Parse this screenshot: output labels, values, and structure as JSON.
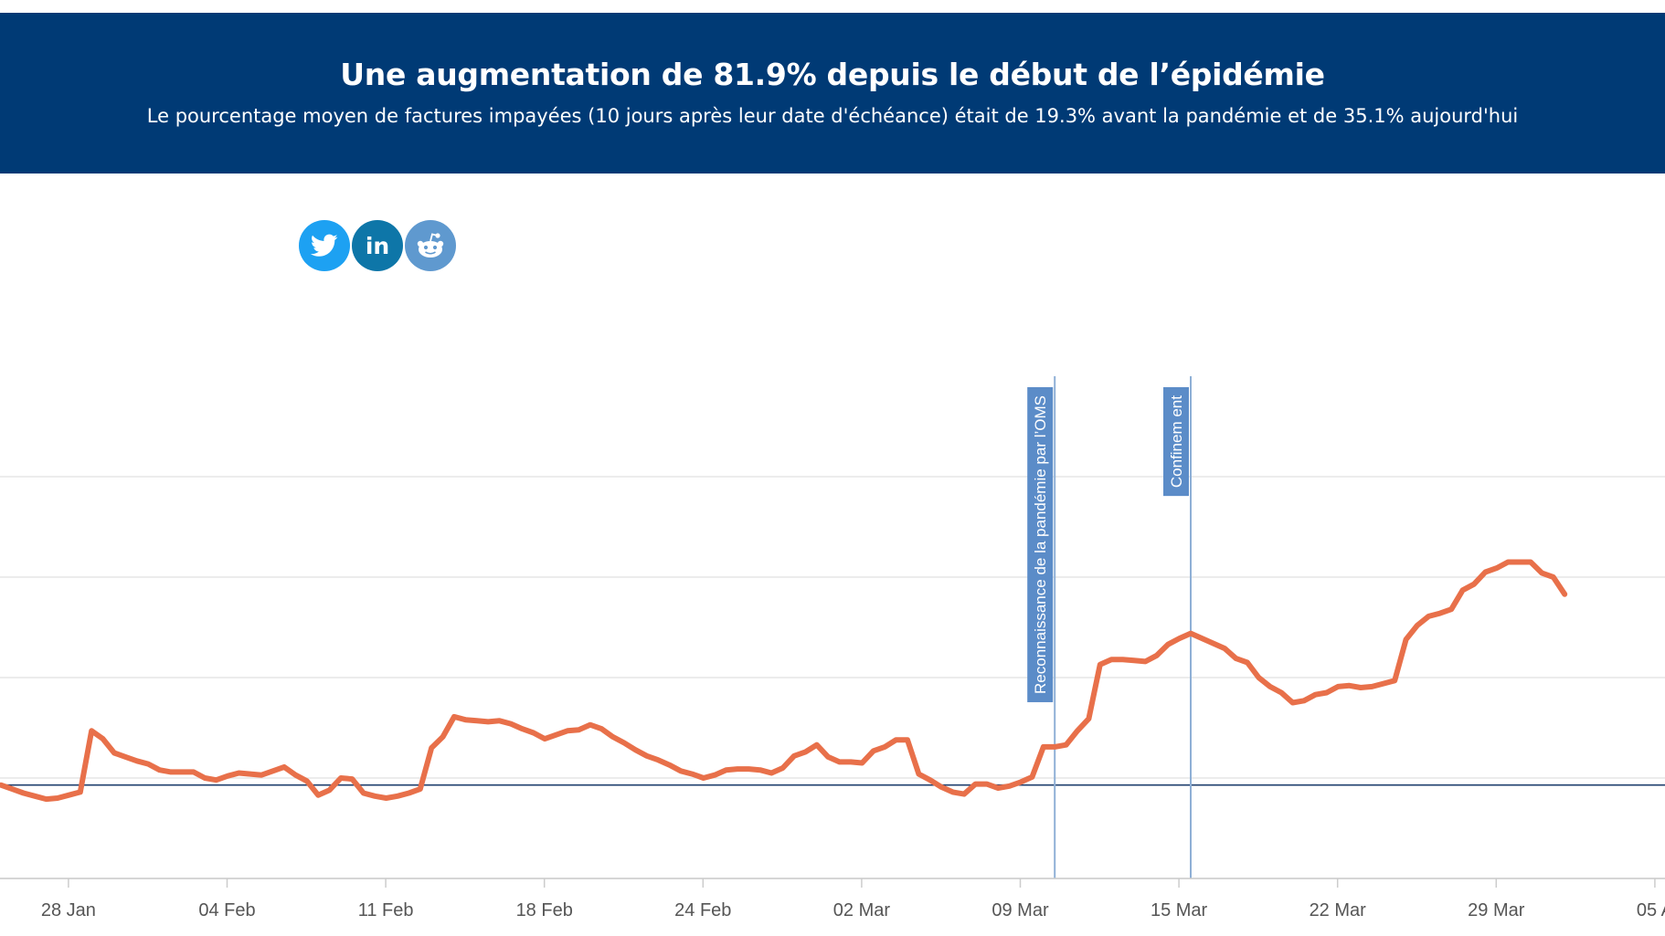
{
  "header": {
    "title": "Une augmentation de 81.9% depuis le début de l’épidémie",
    "subtitle": "Le pourcentage moyen de factures impayées (10 jours après leur date d'échéance) était de 19.3% avant la pandémie et de 35.1% aujourd'hui"
  },
  "share": {
    "icons": [
      "twitter-icon",
      "linkedin-icon",
      "reddit-icon"
    ],
    "linkedin_text": "in"
  },
  "colors": {
    "banner": "#003a75",
    "line": "#e8704a",
    "baseline": "#1f3f6e",
    "annotation": "#5b8cc8"
  },
  "chart_data": {
    "type": "line",
    "x_unit": "date (2020)",
    "y_unit": "% factures impayées",
    "ylim": [
      10.0,
      60.0
    ],
    "y_gridlines": [
      10.0,
      20.0,
      30.0,
      40.0,
      50.0
    ],
    "grid": "horizontal",
    "reference_line": 19.3,
    "x_ticks": [
      "28 Jan",
      "04 Feb",
      "11 Feb",
      "18 Feb",
      "24 Feb",
      "02 Mar",
      "09 Mar",
      "15 Mar",
      "22 Mar",
      "29 Mar",
      "05 A"
    ],
    "x_tick_dates": [
      "2020-01-28",
      "2020-02-04",
      "2020-02-11",
      "2020-02-18",
      "2020-02-25",
      "2020-03-03",
      "2020-03-10",
      "2020-03-17",
      "2020-03-24",
      "2020-03-31",
      "2020-04-07"
    ],
    "annotations": [
      {
        "date": "2020-03-11T12:00",
        "label": "Reconnaissance de la pandémie par l’OMS"
      },
      {
        "date": "2020-03-17T12:00",
        "label": "Confinem ent"
      }
    ],
    "series": [
      {
        "points": [
          [
            "2020-01-25",
            19.3
          ],
          [
            "2020-01-25T12:00",
            18.9
          ],
          [
            "2020-01-26",
            18.5
          ],
          [
            "2020-01-26T12:00",
            18.2
          ],
          [
            "2020-01-27",
            17.9
          ],
          [
            "2020-01-27T12:00",
            18.0
          ],
          [
            "2020-01-28",
            18.3
          ],
          [
            "2020-01-28T12:00",
            18.6
          ],
          [
            "2020-01-29",
            24.7
          ],
          [
            "2020-01-29T12:00",
            23.9
          ],
          [
            "2020-01-30",
            22.5
          ],
          [
            "2020-01-30T12:00",
            22.1
          ],
          [
            "2020-01-31",
            21.7
          ],
          [
            "2020-01-31T12:00",
            21.4
          ],
          [
            "2020-02-01",
            20.8
          ],
          [
            "2020-02-01T12:00",
            20.6
          ],
          [
            "2020-02-02",
            20.6
          ],
          [
            "2020-02-02T12:00",
            20.6
          ],
          [
            "2020-02-03",
            20.0
          ],
          [
            "2020-02-03T12:00",
            19.8
          ],
          [
            "2020-02-04",
            20.2
          ],
          [
            "2020-02-04T12:00",
            20.5
          ],
          [
            "2020-02-05",
            20.4
          ],
          [
            "2020-02-05T12:00",
            20.3
          ],
          [
            "2020-02-06",
            20.7
          ],
          [
            "2020-02-06T12:00",
            21.1
          ],
          [
            "2020-02-07",
            20.3
          ],
          [
            "2020-02-07T12:00",
            19.7
          ],
          [
            "2020-02-08",
            18.3
          ],
          [
            "2020-02-08T12:00",
            18.8
          ],
          [
            "2020-02-09",
            20.0
          ],
          [
            "2020-02-09T12:00",
            19.9
          ],
          [
            "2020-02-10",
            18.5
          ],
          [
            "2020-02-10T12:00",
            18.2
          ],
          [
            "2020-02-11",
            18.0
          ],
          [
            "2020-02-11T12:00",
            18.2
          ],
          [
            "2020-02-12",
            18.5
          ],
          [
            "2020-02-12T12:00",
            18.9
          ],
          [
            "2020-02-13",
            23.0
          ],
          [
            "2020-02-13T12:00",
            24.1
          ],
          [
            "2020-02-14",
            26.1
          ],
          [
            "2020-02-14T12:00",
            25.8
          ],
          [
            "2020-02-15",
            25.7
          ],
          [
            "2020-02-15T12:00",
            25.6
          ],
          [
            "2020-02-16",
            25.7
          ],
          [
            "2020-02-16T12:00",
            25.4
          ],
          [
            "2020-02-17",
            24.9
          ],
          [
            "2020-02-17T12:00",
            24.5
          ],
          [
            "2020-02-18",
            23.9
          ],
          [
            "2020-02-18T12:00",
            24.3
          ],
          [
            "2020-02-19",
            24.7
          ],
          [
            "2020-02-19T12:00",
            24.8
          ],
          [
            "2020-02-20",
            25.3
          ],
          [
            "2020-02-20T12:00",
            24.9
          ],
          [
            "2020-02-21",
            24.1
          ],
          [
            "2020-02-21T12:00",
            23.5
          ],
          [
            "2020-02-22",
            22.8
          ],
          [
            "2020-02-22T12:00",
            22.2
          ],
          [
            "2020-02-23",
            21.8
          ],
          [
            "2020-02-23T12:00",
            21.3
          ],
          [
            "2020-02-24",
            20.7
          ],
          [
            "2020-02-24T12:00",
            20.4
          ],
          [
            "2020-02-25",
            20.0
          ],
          [
            "2020-02-25T12:00",
            20.3
          ],
          [
            "2020-02-26",
            20.8
          ],
          [
            "2020-02-26T12:00",
            20.9
          ],
          [
            "2020-02-27",
            20.9
          ],
          [
            "2020-02-27T12:00",
            20.8
          ],
          [
            "2020-02-28",
            20.5
          ],
          [
            "2020-02-28T12:00",
            21.0
          ],
          [
            "2020-02-29",
            22.2
          ],
          [
            "2020-02-29T12:00",
            22.6
          ],
          [
            "2020-03-01",
            23.3
          ],
          [
            "2020-03-01T12:00",
            22.1
          ],
          [
            "2020-03-02",
            21.6
          ],
          [
            "2020-03-02T12:00",
            21.6
          ],
          [
            "2020-03-03",
            21.5
          ],
          [
            "2020-03-03T12:00",
            22.7
          ],
          [
            "2020-03-04",
            23.1
          ],
          [
            "2020-03-04T12:00",
            23.8
          ],
          [
            "2020-03-05",
            23.8
          ],
          [
            "2020-03-05T12:00",
            20.4
          ],
          [
            "2020-03-06",
            19.8
          ],
          [
            "2020-03-06T12:00",
            19.1
          ],
          [
            "2020-03-07",
            18.6
          ],
          [
            "2020-03-07T12:00",
            18.4
          ],
          [
            "2020-03-08",
            19.4
          ],
          [
            "2020-03-08T12:00",
            19.4
          ],
          [
            "2020-03-09",
            19.0
          ],
          [
            "2020-03-09T12:00",
            19.2
          ],
          [
            "2020-03-10",
            19.6
          ],
          [
            "2020-03-10T12:00",
            20.1
          ],
          [
            "2020-03-11",
            23.1
          ],
          [
            "2020-03-11T12:00",
            23.1
          ],
          [
            "2020-03-12",
            23.3
          ],
          [
            "2020-03-12T12:00",
            24.7
          ],
          [
            "2020-03-13",
            25.9
          ],
          [
            "2020-03-13T12:00",
            31.3
          ],
          [
            "2020-03-14",
            31.8
          ],
          [
            "2020-03-14T12:00",
            31.8
          ],
          [
            "2020-03-15",
            31.7
          ],
          [
            "2020-03-15T12:00",
            31.6
          ],
          [
            "2020-03-16",
            32.2
          ],
          [
            "2020-03-16T12:00",
            33.3
          ],
          [
            "2020-03-17",
            33.9
          ],
          [
            "2020-03-17T12:00",
            34.4
          ],
          [
            "2020-03-18",
            33.9
          ],
          [
            "2020-03-18T12:00",
            33.4
          ],
          [
            "2020-03-19",
            32.9
          ],
          [
            "2020-03-19T12:00",
            31.9
          ],
          [
            "2020-03-20",
            31.5
          ],
          [
            "2020-03-20T12:00",
            30.0
          ],
          [
            "2020-03-21",
            29.1
          ],
          [
            "2020-03-21T12:00",
            28.5
          ],
          [
            "2020-03-22",
            27.5
          ],
          [
            "2020-03-22T12:00",
            27.7
          ],
          [
            "2020-03-23",
            28.3
          ],
          [
            "2020-03-23T12:00",
            28.5
          ],
          [
            "2020-03-24",
            29.1
          ],
          [
            "2020-03-24T12:00",
            29.2
          ],
          [
            "2020-03-25",
            29.0
          ],
          [
            "2020-03-25T12:00",
            29.1
          ],
          [
            "2020-03-26",
            29.4
          ],
          [
            "2020-03-26T12:00",
            29.7
          ],
          [
            "2020-03-27",
            33.8
          ],
          [
            "2020-03-27T12:00",
            35.2
          ],
          [
            "2020-03-28",
            36.1
          ],
          [
            "2020-03-28T12:00",
            36.4
          ],
          [
            "2020-03-29",
            36.8
          ],
          [
            "2020-03-29T12:00",
            38.7
          ],
          [
            "2020-03-30",
            39.3
          ],
          [
            "2020-03-30T12:00",
            40.5
          ],
          [
            "2020-03-31",
            40.9
          ],
          [
            "2020-03-31T12:00",
            41.5
          ],
          [
            "2020-04-01",
            41.5
          ],
          [
            "2020-04-01T12:00",
            41.5
          ],
          [
            "2020-04-02",
            40.4
          ],
          [
            "2020-04-02T12:00",
            40.0
          ],
          [
            "2020-04-03",
            38.3
          ]
        ]
      }
    ]
  }
}
